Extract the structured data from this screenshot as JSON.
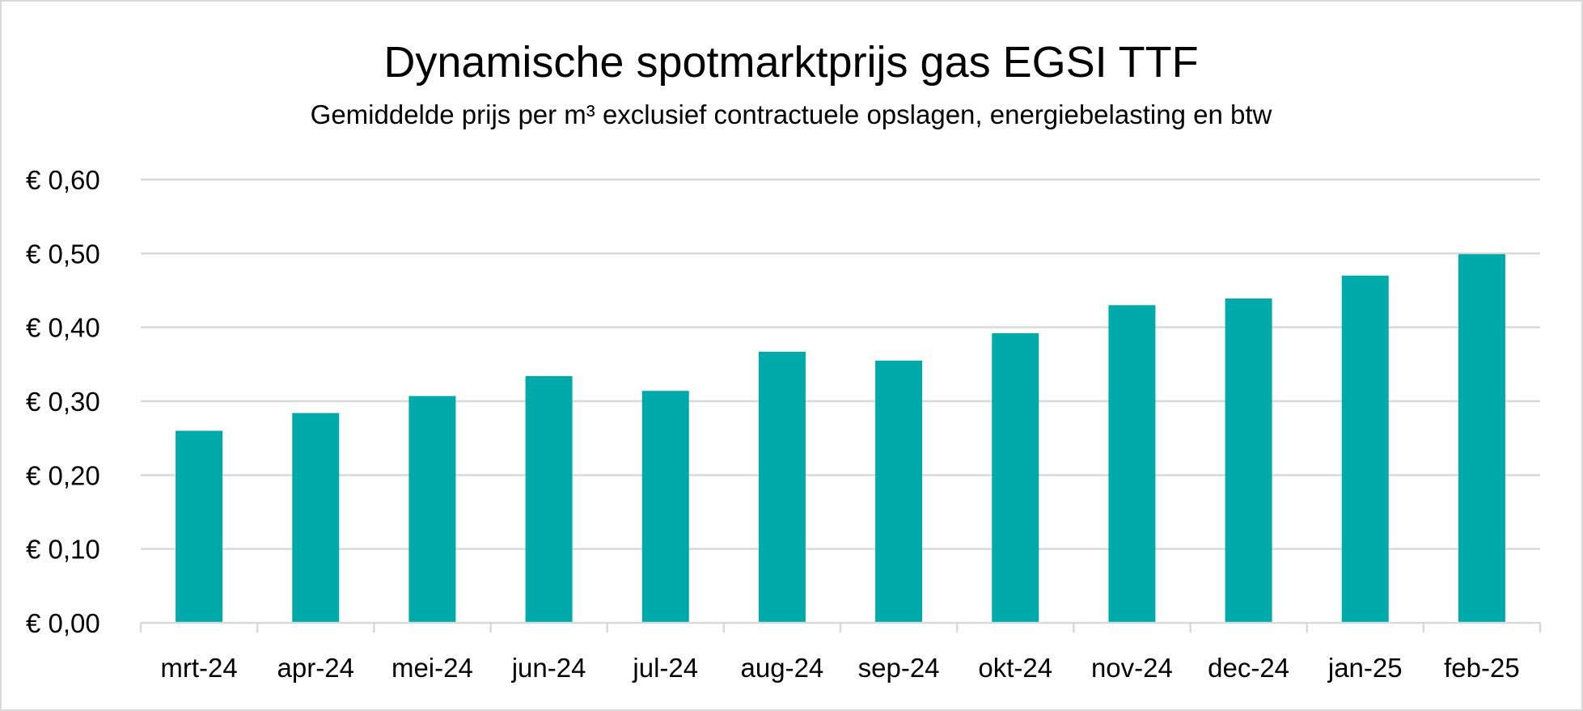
{
  "chart_data": {
    "type": "bar",
    "title": "Dynamische spotmarktprijs gas EGSI TTF",
    "subtitle": "Gemiddelde prijs per m³ exclusief contractuele opslagen, energiebelasting en btw",
    "categories": [
      "mrt-24",
      "apr-24",
      "mei-24",
      "jun-24",
      "jul-24",
      "aug-24",
      "sep-24",
      "okt-24",
      "nov-24",
      "dec-24",
      "jan-25",
      "feb-25"
    ],
    "values": [
      0.26,
      0.284,
      0.307,
      0.334,
      0.314,
      0.367,
      0.355,
      0.392,
      0.43,
      0.439,
      0.47,
      0.499
    ],
    "ylim": [
      0,
      0.6
    ],
    "yticks": [
      "€ 0,00",
      "€ 0,10",
      "€ 0,20",
      "€ 0,30",
      "€ 0,40",
      "€ 0,50",
      "€ 0,60"
    ],
    "ytick_values": [
      0,
      0.1,
      0.2,
      0.3,
      0.4,
      0.5,
      0.6
    ],
    "bar_color": "#00aaaa",
    "grid_color": "#d9d9d9",
    "grid": true,
    "legend": "none"
  }
}
